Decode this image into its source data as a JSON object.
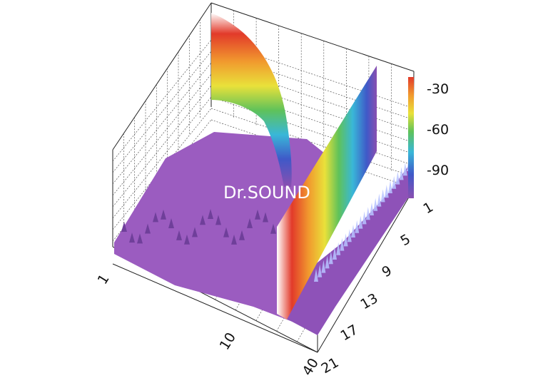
{
  "watermark": "Dr.SOUND",
  "chart_data": {
    "type": "surface3d",
    "title": "",
    "x_axis": {
      "ticks": [
        "1",
        "10",
        "40"
      ],
      "scale": "log"
    },
    "y_axis": {
      "ticks": [
        "1",
        "5",
        "9",
        "13",
        "17",
        "21"
      ]
    },
    "z_axis": {
      "ticks": [
        "-30",
        "-60",
        "-90"
      ]
    },
    "colorbar": {
      "present": true,
      "ticks": [
        "-30",
        "-60",
        "-90"
      ]
    },
    "colors": [
      "#8a4fb0",
      "#3f59c8",
      "#39b7d8",
      "#5fc25a",
      "#e9e13a",
      "#f19a2e",
      "#e23a2a",
      "#ffffff"
    ],
    "features": [
      {
        "name": "",
        "kind": "harmonic-sweep",
        "peak_level": -30
      },
      {
        "name": "",
        "kind": "fundamental-ridge",
        "peak_level": -30
      }
    ],
    "grid": true
  }
}
